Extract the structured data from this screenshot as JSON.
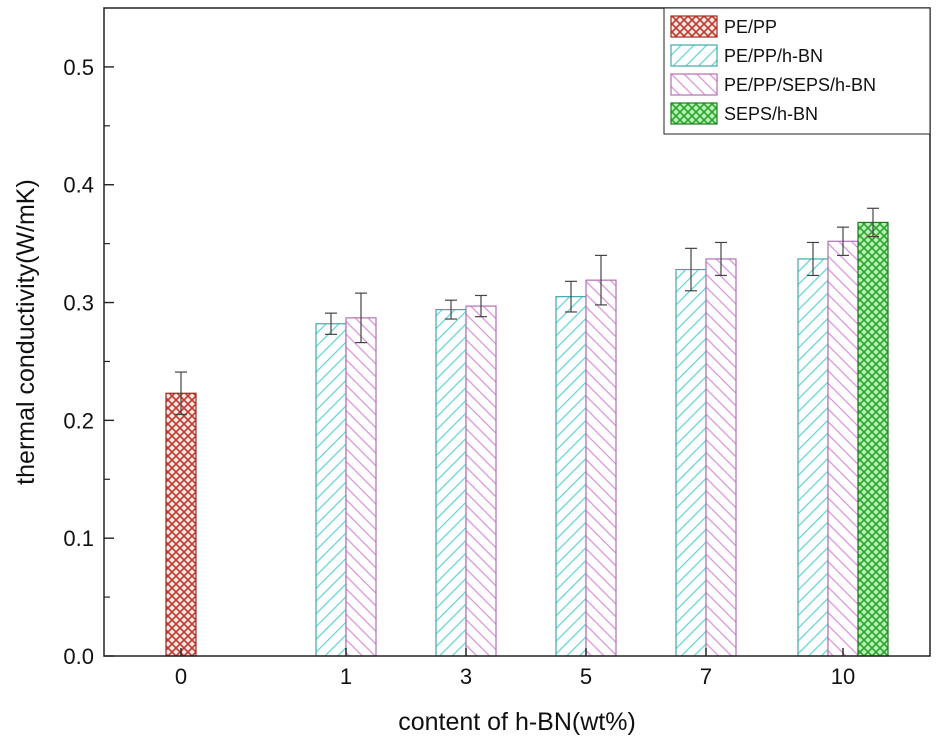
{
  "chart_data": {
    "type": "bar",
    "xlabel": "content of h-BN(wt%)",
    "ylabel": "thermal conductivity(W/mK)",
    "categories": [
      "0",
      "1",
      "3",
      "5",
      "7",
      "10"
    ],
    "ylim": [
      0,
      0.55
    ],
    "yticks": [
      "0.0",
      "0.1",
      "0.2",
      "0.3",
      "0.4",
      "0.5"
    ],
    "grid": false,
    "legend_position": "top-right",
    "series": [
      {
        "name": "PE/PP",
        "color": "#c0392b",
        "pattern": "crosshatch",
        "values": [
          0.223,
          null,
          null,
          null,
          null,
          null
        ],
        "errors": [
          0.018,
          null,
          null,
          null,
          null,
          null
        ]
      },
      {
        "name": "PE/PP/h-BN",
        "color": "#5fd3d3",
        "pattern": "diagonal-hatch",
        "values": [
          null,
          0.282,
          0.294,
          0.305,
          0.328,
          0.337
        ],
        "errors": [
          null,
          0.009,
          0.008,
          0.013,
          0.018,
          0.014
        ]
      },
      {
        "name": "PE/PP/SEPS/h-BN",
        "color": "#d98fd9",
        "pattern": "diagonal-hatch",
        "values": [
          null,
          0.287,
          0.297,
          0.319,
          0.337,
          0.352
        ],
        "errors": [
          null,
          0.021,
          0.009,
          0.021,
          0.014,
          0.012
        ]
      },
      {
        "name": "SEPS/h-BN",
        "color": "#3cc83c",
        "pattern": "crosshatch",
        "values": [
          null,
          null,
          null,
          null,
          null,
          0.368
        ],
        "errors": [
          null,
          null,
          null,
          null,
          null,
          0.012
        ]
      }
    ]
  }
}
